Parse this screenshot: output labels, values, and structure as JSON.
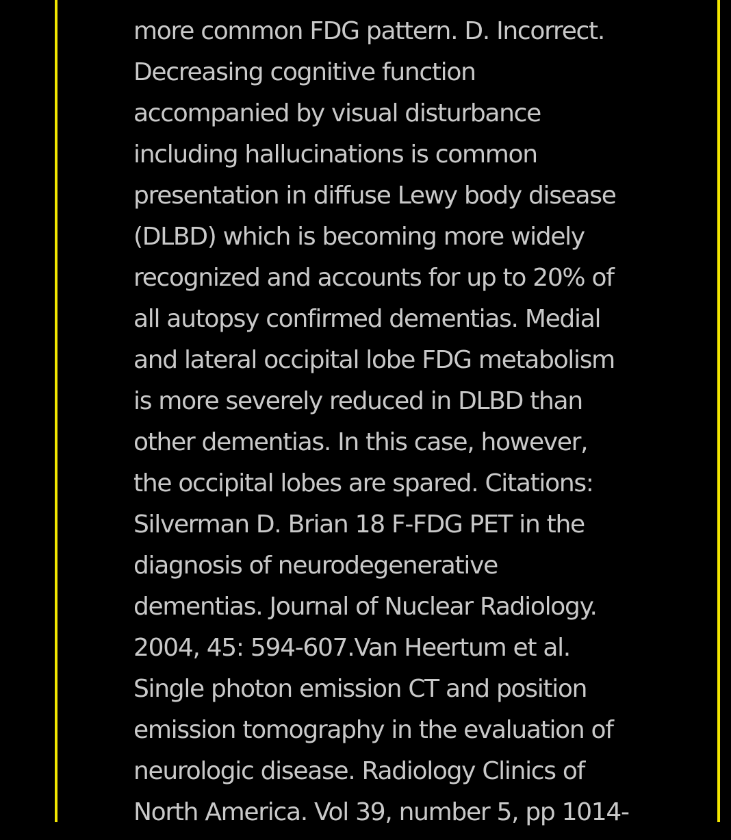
{
  "explanation": {
    "lines": [
      "more common FDG pattern. D. Incorrect.",
      "Decreasing cognitive function",
      "accompanied by visual disturbance",
      "including hallucinations is common",
      "presentation in diffuse Lewy body disease",
      "(DLBD) which is becoming more widely",
      "recognized and accounts for up to 20% of",
      "all autopsy confirmed dementias. Medial",
      "and lateral occipital lobe FDG metabolism",
      "is more severely reduced in DLBD than",
      "other dementias. In this case, however,",
      "the occipital lobes are spared. Citations:",
      "Silverman D. Brian 18 F-FDG PET in the",
      "diagnosis of neurodegenerative",
      "dementias. Journal of Nuclear Radiology.",
      "2004, 45: 594-607.Van Heertum et al.",
      "Single photon emission CT and position",
      "emission tomography in the evaluation of",
      "neurologic disease. Radiology Clinics of",
      "North America. Vol 39, number 5, pp 1014-"
    ]
  },
  "colors": {
    "background": "#000000",
    "text": "#c9c9c9",
    "border": "#f2e600"
  }
}
